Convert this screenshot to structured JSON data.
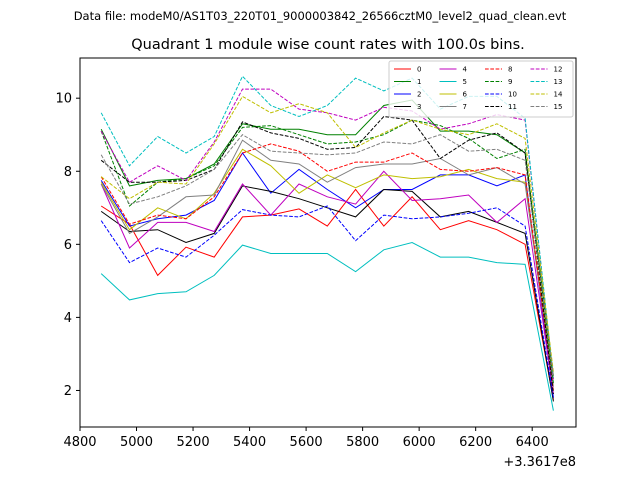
{
  "header": {
    "data_file_label": "Data file: modeM0/AS1T03_220T01_9000003842_26566cztM0_level2_quad_clean.evt"
  },
  "chart_data": {
    "type": "line",
    "title": "Quadrant 1 module wise count rates with 100.0s bins.",
    "xlabel": "",
    "ylabel": "",
    "x_offset_label": "+3.3617e8",
    "xlim": [
      4800,
      6555
    ],
    "ylim": [
      1.0,
      11.1
    ],
    "x_ticks": [
      4800,
      5000,
      5200,
      5400,
      5600,
      5800,
      6000,
      6200,
      6400
    ],
    "y_ticks": [
      2,
      4,
      6,
      8,
      10
    ],
    "x": [
      4875,
      4975,
      5075,
      5175,
      5275,
      5375,
      5475,
      5575,
      5675,
      5775,
      5875,
      5975,
      6075,
      6175,
      6275,
      6375,
      6475
    ],
    "legend_position": "upper-right",
    "series": [
      {
        "name": "0",
        "color": "#ff0000",
        "style": "solid",
        "values": [
          7.05,
          6.55,
          5.15,
          5.92,
          5.65,
          6.75,
          6.8,
          6.97,
          6.5,
          7.5,
          6.5,
          7.3,
          6.4,
          6.65,
          6.4,
          6.0,
          1.75
        ]
      },
      {
        "name": "1",
        "color": "#008000",
        "style": "solid",
        "values": [
          9.15,
          7.6,
          7.75,
          7.8,
          8.2,
          9.3,
          9.15,
          9.15,
          9.0,
          9.0,
          9.8,
          9.95,
          9.1,
          9.1,
          9.0,
          8.5,
          2.4
        ]
      },
      {
        "name": "2",
        "color": "#0000ff",
        "style": "solid",
        "values": [
          7.75,
          6.5,
          6.7,
          6.8,
          7.2,
          8.5,
          7.4,
          8.05,
          7.5,
          7.0,
          7.5,
          7.5,
          7.9,
          7.9,
          7.6,
          7.9,
          1.8
        ]
      },
      {
        "name": "3",
        "color": "#000000",
        "style": "solid",
        "values": [
          6.9,
          6.35,
          6.4,
          6.05,
          6.3,
          7.6,
          7.45,
          7.25,
          7.0,
          6.75,
          7.5,
          7.45,
          6.75,
          6.9,
          6.6,
          6.3,
          1.7
        ]
      },
      {
        "name": "4",
        "color": "#bf00bf",
        "style": "solid",
        "values": [
          7.65,
          5.9,
          6.6,
          6.6,
          6.35,
          7.65,
          6.8,
          7.65,
          7.3,
          7.1,
          8.0,
          7.2,
          7.25,
          7.35,
          6.6,
          7.25,
          1.9
        ]
      },
      {
        "name": "5",
        "color": "#00bfbf",
        "style": "solid",
        "values": [
          5.2,
          4.48,
          4.65,
          4.7,
          5.15,
          5.98,
          5.75,
          5.75,
          5.75,
          5.25,
          5.85,
          6.05,
          5.65,
          5.65,
          5.5,
          5.45,
          1.45
        ]
      },
      {
        "name": "6",
        "color": "#bfbf00",
        "style": "solid",
        "values": [
          7.7,
          6.4,
          7.0,
          6.7,
          7.4,
          8.6,
          8.15,
          7.4,
          7.9,
          7.55,
          7.9,
          7.8,
          7.85,
          8.05,
          7.8,
          7.7,
          2.3
        ]
      },
      {
        "name": "7",
        "color": "#808080",
        "style": "solid",
        "values": [
          7.65,
          6.3,
          6.75,
          7.3,
          7.35,
          8.85,
          8.3,
          8.2,
          7.7,
          8.1,
          8.2,
          8.2,
          8.35,
          7.9,
          8.1,
          7.65,
          2.1
        ]
      },
      {
        "name": "8",
        "color": "#ff0000",
        "style": "dashed",
        "values": [
          7.85,
          6.55,
          6.8,
          6.7,
          7.3,
          8.5,
          8.75,
          8.55,
          8.0,
          8.25,
          8.25,
          8.5,
          8.05,
          8.0,
          8.1,
          7.9,
          2.0
        ]
      },
      {
        "name": "9",
        "color": "#008000",
        "style": "dashed",
        "values": [
          9.1,
          7.05,
          7.7,
          7.8,
          8.15,
          9.2,
          9.25,
          9.0,
          8.75,
          8.8,
          9.0,
          9.4,
          9.25,
          8.9,
          8.35,
          8.6,
          2.2
        ]
      },
      {
        "name": "10",
        "color": "#0000ff",
        "style": "dashed",
        "values": [
          6.65,
          5.5,
          5.9,
          5.65,
          6.25,
          6.95,
          6.8,
          6.75,
          7.05,
          6.1,
          6.8,
          6.7,
          6.75,
          6.85,
          7.0,
          6.5,
          1.8
        ]
      },
      {
        "name": "11",
        "color": "#000000",
        "style": "dashed",
        "values": [
          8.3,
          7.7,
          7.7,
          7.75,
          8.05,
          9.35,
          9.05,
          8.9,
          8.6,
          8.65,
          9.5,
          9.4,
          8.35,
          8.85,
          9.05,
          8.5,
          1.9
        ]
      },
      {
        "name": "12",
        "color": "#bf00bf",
        "style": "dashed",
        "values": [
          9.1,
          7.7,
          8.15,
          7.75,
          8.8,
          10.25,
          10.25,
          9.7,
          9.6,
          9.4,
          9.75,
          9.65,
          9.15,
          9.3,
          9.55,
          9.4,
          2.3
        ]
      },
      {
        "name": "13",
        "color": "#00bfbf",
        "style": "dashed",
        "values": [
          9.6,
          8.15,
          8.95,
          8.5,
          8.95,
          10.6,
          9.8,
          9.5,
          9.8,
          10.55,
          10.2,
          10.55,
          9.7,
          10.05,
          10.05,
          9.45,
          2.35
        ]
      },
      {
        "name": "14",
        "color": "#bfbf00",
        "style": "dashed",
        "values": [
          7.85,
          7.25,
          7.7,
          7.65,
          8.75,
          10.05,
          9.6,
          9.85,
          9.6,
          8.65,
          9.05,
          9.4,
          9.15,
          9.0,
          9.3,
          8.9,
          2.5
        ]
      },
      {
        "name": "15",
        "color": "#808080",
        "style": "dashed",
        "values": [
          8.45,
          7.1,
          7.3,
          7.6,
          8.05,
          9.0,
          8.55,
          8.5,
          8.45,
          8.5,
          8.8,
          8.75,
          9.0,
          8.55,
          8.6,
          8.3,
          2.4
        ]
      }
    ]
  }
}
